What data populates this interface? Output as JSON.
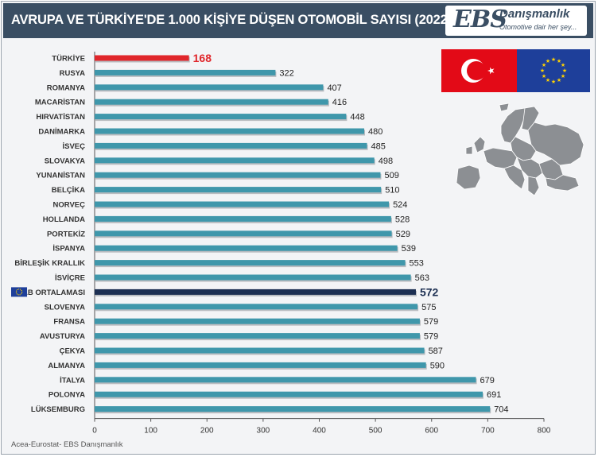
{
  "header": {
    "title": "AVRUPA VE TÜRKİYE'DE 1.000 KİŞİYE DÜŞEN OTOMOBİL SAYISI  (2022)",
    "logo_main": "EBS",
    "logo_word": "Danışmanlık",
    "logo_tagline": "Otomotive dair her şey..."
  },
  "source": "Acea-Eurostat- EBS Danışmanlık",
  "colors": {
    "bar_default": "#3f97ab",
    "bar_turkey": "#e0262b",
    "bar_eu_average": "#1c2f52",
    "header_bg": "#3a4e63"
  },
  "icons": [
    "turkey-flag-icon",
    "eu-flag-icon",
    "europe-map-icon",
    "eu-mini-flag-icon"
  ],
  "chart_data": {
    "type": "bar",
    "orientation": "horizontal",
    "categories": [
      "TÜRKİYE",
      "RUSYA",
      "ROMANYA",
      "MACARİSTAN",
      "HIRVATİSTAN",
      "DANİMARKA",
      "İSVEÇ",
      "SLOVAKYA",
      "YUNANİSTAN",
      "BELÇİKA",
      "NORVEÇ",
      "HOLLANDA",
      "PORTEKİZ",
      "İSPANYA",
      "BİRLEŞİK KRALLIK",
      "İSVİÇRE",
      "AB ORTALAMASI",
      "SLOVENYA",
      "FRANSA",
      "AVUSTURYA",
      "ÇEKYA",
      "ALMANYA",
      "İTALYA",
      "POLONYA",
      "LÜKSEMBURG"
    ],
    "values": [
      168,
      322,
      407,
      416,
      448,
      480,
      485,
      498,
      509,
      510,
      524,
      528,
      529,
      539,
      553,
      563,
      572,
      575,
      579,
      579,
      587,
      590,
      679,
      691,
      704
    ],
    "value_labels": [
      "168",
      "322",
      "407",
      "416",
      "448",
      "480",
      "485",
      "498",
      "509",
      "510",
      "524",
      "528",
      "529",
      "539",
      "553",
      "563",
      "572",
      "575",
      "579",
      "579",
      "587",
      "590",
      "679",
      "691",
      "704"
    ],
    "highlight": {
      "TÜRKİYE": "turkey",
      "AB ORTALAMASI": "eu_average"
    },
    "xlim": [
      0,
      800
    ],
    "xticks": [
      "0",
      "100",
      "200",
      "300",
      "400",
      "500",
      "600",
      "700",
      "800"
    ],
    "grid": false
  }
}
